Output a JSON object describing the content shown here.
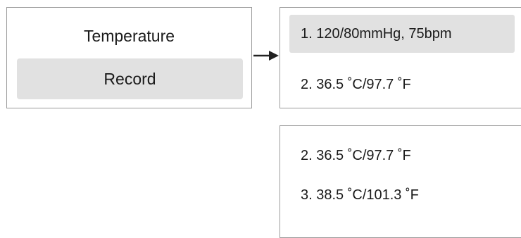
{
  "source_panel": {
    "title": "Temperature",
    "button_label": "Record"
  },
  "top_list": {
    "items": [
      "1. 120/80mmHg, 75bpm",
      "2. 36.5 ˚C/97.7 ˚F"
    ],
    "selected_index": 0
  },
  "bottom_list": {
    "items": [
      "2. 36.5 ˚C/97.7 ˚F",
      "3. 38.5 ˚C/101.3 ˚F"
    ]
  },
  "colors": {
    "border": "#9a9a9a",
    "highlight": "#e1e1e1",
    "arrow": "#222222"
  }
}
